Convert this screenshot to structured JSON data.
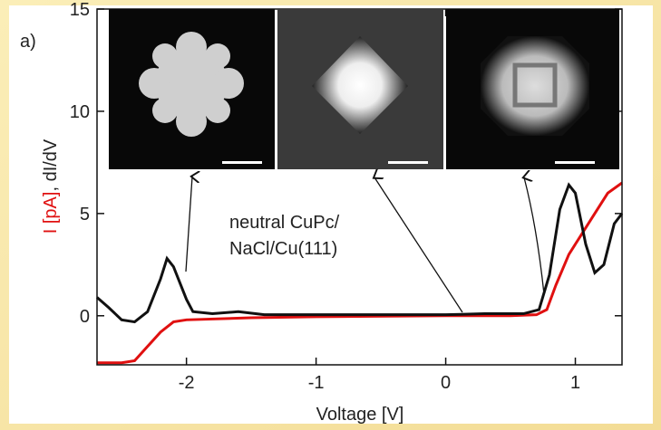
{
  "chart_data": {
    "type": "line",
    "panel_label": "a)",
    "x_label": "Voltage [V]",
    "y_label_red": "I [pA]",
    "y_label_black": ", dI/dV",
    "annotation": [
      "neutral CuPc/",
      "NaCl/Cu(111)"
    ],
    "xlim": [
      -2.69,
      1.36
    ],
    "ylim": [
      -2.4,
      15
    ],
    "xticks": [
      -2,
      -1,
      0,
      1
    ],
    "yticks": [
      0,
      5,
      10,
      15
    ],
    "series": [
      {
        "color": "#111111",
        "x": [
          -2.69,
          -2.6,
          -2.5,
          -2.4,
          -2.3,
          -2.2,
          -2.15,
          -2.1,
          -2.0,
          -1.95,
          -1.8,
          -1.6,
          -1.4,
          -1.0,
          -0.5,
          0,
          0.3,
          0.6,
          0.72,
          0.8,
          0.88,
          0.95,
          1.0,
          1.08,
          1.15,
          1.22,
          1.3,
          1.36
        ],
        "values": [
          0.9,
          0.4,
          -0.2,
          -0.3,
          0.2,
          1.8,
          2.8,
          2.4,
          0.8,
          0.2,
          0.1,
          0.2,
          0.05,
          0.05,
          0.05,
          0.05,
          0.1,
          0.1,
          0.3,
          2.0,
          5.2,
          6.4,
          6.0,
          3.5,
          2.1,
          2.5,
          4.5,
          5.0
        ]
      },
      {
        "color": "#e01010",
        "x": [
          -2.69,
          -2.5,
          -2.4,
          -2.3,
          -2.2,
          -2.1,
          -2.0,
          -1.5,
          -1.0,
          0,
          0.5,
          0.7,
          0.78,
          0.85,
          0.95,
          1.05,
          1.15,
          1.25,
          1.36
        ],
        "values": [
          -2.3,
          -2.3,
          -2.2,
          -1.5,
          -0.8,
          -0.3,
          -0.2,
          -0.1,
          -0.05,
          0,
          0,
          0.05,
          0.3,
          1.5,
          3.0,
          4.0,
          5.0,
          6.0,
          6.5
        ]
      }
    ]
  }
}
